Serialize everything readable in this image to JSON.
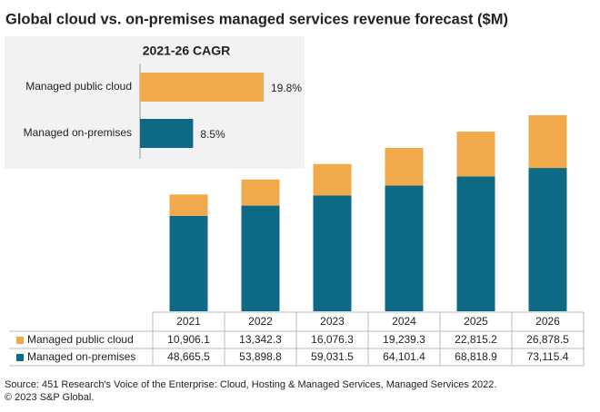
{
  "chart_data": [
    {
      "type": "stacked-bar",
      "title": "Global cloud vs. on-premises managed services revenue forecast ($M)",
      "categories": [
        "2021",
        "2022",
        "2023",
        "2024",
        "2025",
        "2026"
      ],
      "series": [
        {
          "name": "Managed public cloud",
          "color": "#f0a94b",
          "values": [
            10906.1,
            13342.3,
            16076.3,
            19239.3,
            22815.2,
            26878.5
          ],
          "value_labels": [
            "10,906.1",
            "13,342.3",
            "16,076.3",
            "19,239.3",
            "22,815.2",
            "26,878.5"
          ]
        },
        {
          "name": "Managed on-premises",
          "color": "#0e6a84",
          "values": [
            48665.5,
            53898.8,
            59031.5,
            64101.4,
            68818.9,
            73115.4
          ],
          "value_labels": [
            "48,665.5",
            "53,898.8",
            "59,031.5",
            "64,101.4",
            "68,818.9",
            "73,115.4"
          ]
        }
      ],
      "source": [
        "Source: 451 Research's Voice of the Enterprise: Cloud, Hosting & Managed Services, Managed Services 2022.",
        "© 2023 S&P Global."
      ]
    },
    {
      "type": "hbar",
      "title": "2021-26 CAGR",
      "categories": [
        "Managed public cloud",
        "Managed on-premises"
      ],
      "values": [
        19.8,
        8.5
      ],
      "value_labels": [
        "19.8%",
        "8.5%"
      ],
      "colors": [
        "#f0a94b",
        "#0e6a84"
      ]
    }
  ]
}
